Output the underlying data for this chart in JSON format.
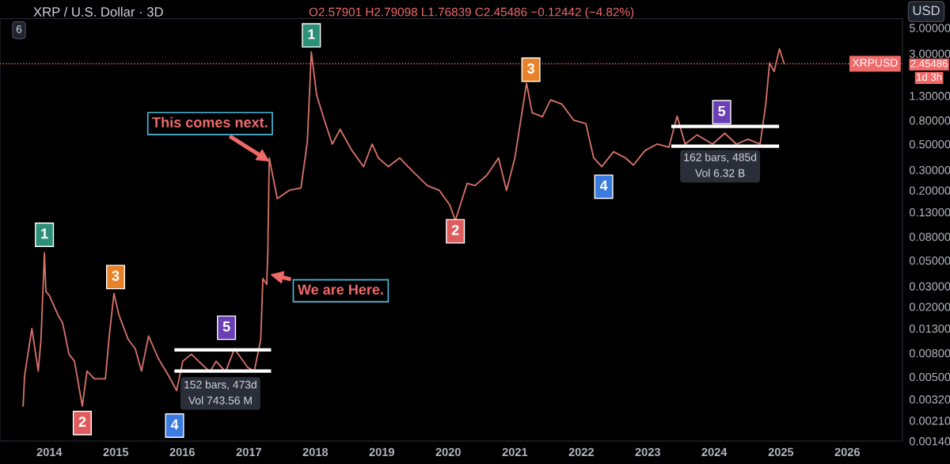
{
  "chart_data": {
    "type": "line",
    "title": "XRP / U.S. Dollar · 3D",
    "subtitle": "O2.57901 H2.79098 L1.76839 C2.45486 −0.12442 (−4.82%)",
    "series": [
      {
        "color": "#d9736b",
        "x": [
          "2013-08-10",
          "2013-08-18",
          "2013-09-27",
          "2013-11-01",
          "2013-11-16",
          "2013-12-05",
          "2013-12-13",
          "2014-01-01",
          "2014-02-17",
          "2014-03-15",
          "2014-04-19",
          "2014-05-19",
          "2014-07-01",
          "2014-07-27",
          "2014-09-05",
          "2014-11-05",
          "2014-11-26",
          "2014-12-22",
          "2015-01-18",
          "2015-03-11",
          "2015-04-18",
          "2015-05-22",
          "2015-06-30",
          "2015-08-22",
          "2015-10-18",
          "2015-12-01",
          "2016-01-04",
          "2016-02-20",
          "2016-06-01",
          "2016-07-05",
          "2016-08-26",
          "2016-10-14",
          "2016-12-26",
          "2017-01-31",
          "2017-03-07",
          "2017-03-19",
          "2017-04-09",
          "2017-04-15",
          "2017-04-23",
          "2017-06-06",
          "2017-08-10",
          "2017-10-14",
          "2017-11-18",
          "2017-12-10",
          "2018-01-08",
          "2018-02-20",
          "2018-04-04",
          "2018-05-17",
          "2018-07-21",
          "2018-09-23",
          "2018-11-09",
          "2018-12-13",
          "2019-02-05",
          "2019-04-09",
          "2019-06-12",
          "2019-09-08",
          "2019-11-13",
          "2020-01-09",
          "2020-02-09",
          "2020-04-14",
          "2020-05-27",
          "2020-07-31",
          "2020-10-03",
          "2020-11-16",
          "2021-01-01",
          "2021-03-06",
          "2021-04-06",
          "2021-06-01",
          "2021-07-16",
          "2021-09-17",
          "2021-11-21",
          "2022-01-26",
          "2022-03-10",
          "2022-04-23",
          "2022-06-27",
          "2022-09-01",
          "2022-10-14",
          "2022-12-17",
          "2023-02-21",
          "2023-04-27",
          "2023-06-11",
          "2023-07-25",
          "2023-09-28",
          "2023-12-23",
          "2024-02-28",
          "2024-05-01",
          "2024-07-05",
          "2024-09-09",
          "2024-10-10",
          "2024-10-31",
          "2024-11-25",
          "2024-12-24",
          "2025-01-19"
        ],
        "values": [
          0.0028,
          0.0051,
          0.013,
          0.0056,
          0.0104,
          0.058,
          0.027,
          0.025,
          0.017,
          0.0145,
          0.0078,
          0.0068,
          0.0028,
          0.0056,
          0.0048,
          0.0048,
          0.0112,
          0.026,
          0.017,
          0.0104,
          0.0087,
          0.0056,
          0.0112,
          0.0072,
          0.0051,
          0.0038,
          0.0068,
          0.0078,
          0.0055,
          0.0068,
          0.0055,
          0.0087,
          0.006,
          0.0056,
          0.0104,
          0.035,
          0.031,
          0.059,
          0.38,
          0.17,
          0.2,
          0.21,
          0.52,
          3.1,
          1.32,
          0.8,
          0.5,
          0.67,
          0.44,
          0.32,
          0.5,
          0.38,
          0.32,
          0.38,
          0.3,
          0.22,
          0.2,
          0.15,
          0.11,
          0.23,
          0.22,
          0.27,
          0.38,
          0.2,
          0.38,
          1.67,
          0.93,
          0.86,
          1.2,
          1.1,
          0.8,
          0.75,
          0.38,
          0.32,
          0.43,
          0.38,
          0.33,
          0.44,
          0.5,
          0.47,
          0.87,
          0.5,
          0.6,
          0.5,
          0.62,
          0.5,
          0.55,
          0.5,
          1.1,
          2.5,
          2.1,
          3.3,
          2.45486
        ]
      },
      {
        "color": "#ffffff",
        "x": [
          "2015-11-28",
          "2017-04-24"
        ],
        "values": [
          0.0085,
          0.0085
        ]
      },
      {
        "color": "#ffffff",
        "x": [
          "2015-11-28",
          "2017-04-24"
        ],
        "values": [
          0.0056,
          0.0056
        ]
      },
      {
        "color": "#ffffff",
        "x": [
          "2023-05-19",
          "2024-12-13"
        ],
        "values": [
          0.71,
          0.71
        ]
      },
      {
        "color": "#ffffff",
        "x": [
          "2023-05-19",
          "2024-12-13"
        ],
        "values": [
          0.48,
          0.48
        ]
      }
    ],
    "log": "y",
    "grid": false,
    "legend": false,
    "xlim": [
      "2013-04-05",
      "2026-10-31"
    ],
    "xticks": [
      "2014",
      "2015",
      "2016",
      "2017",
      "2018",
      "2019",
      "2020",
      "2021",
      "2022",
      "2023",
      "2024",
      "2025",
      "2026"
    ],
    "ylim": [
      0.0014,
      6.0
    ],
    "yticks": [
      {
        "value": 5,
        "label": "5.00000"
      },
      {
        "value": 3,
        "label": "3.00000"
      },
      {
        "value": 1.3,
        "label": "1.30000"
      },
      {
        "value": 0.8,
        "label": "0.80000"
      },
      {
        "value": 0.5,
        "label": "0.50000"
      },
      {
        "value": 0.3,
        "label": "0.30000"
      },
      {
        "value": 0.2,
        "label": "0.20000"
      },
      {
        "value": 0.13,
        "label": "0.13000"
      },
      {
        "value": 0.08,
        "label": "0.08000"
      },
      {
        "value": 0.05,
        "label": "0.05000"
      },
      {
        "value": 0.03,
        "label": "0.03000"
      },
      {
        "value": 0.02,
        "label": "0.02000"
      },
      {
        "value": 0.013,
        "label": "0.01300"
      },
      {
        "value": 0.008,
        "label": "0.00800"
      },
      {
        "value": 0.005,
        "label": "0.00500"
      },
      {
        "value": 0.0032,
        "label": "0.00320"
      },
      {
        "value": 0.0021,
        "label": "0.00210"
      },
      {
        "value": 0.0014,
        "label": "0.00140"
      }
    ],
    "ref_lines": [
      {
        "axis": "y",
        "value": 2.45486,
        "label": "XRPUSD",
        "color": "#f06a6a",
        "line_style": "dotted"
      }
    ],
    "annotations": [
      {
        "text": "1",
        "x": "2013-12-05",
        "y": 0.083
      },
      {
        "text": "2",
        "x": "2014-07-01",
        "y": 0.002
      },
      {
        "text": "3",
        "x": "2014-12-31",
        "y": 0.036
      },
      {
        "text": "4",
        "x": "2015-11-20",
        "y": 0.0019
      },
      {
        "text": "5",
        "x": "2016-08-31",
        "y": 0.0132
      },
      {
        "text": "1",
        "x": "2017-12-10",
        "y": 4.3
      },
      {
        "text": "2",
        "x": "2020-02-09",
        "y": 0.089
      },
      {
        "text": "3",
        "x": "2021-03-30",
        "y": 2.18
      },
      {
        "text": "4",
        "x": "2022-05-04",
        "y": 0.215
      },
      {
        "text": "5",
        "x": "2024-02-11",
        "y": 0.94
      },
      {
        "text": "This comes next.",
        "x": "2017-04-30",
        "y": 0.35
      },
      {
        "text": "We are Here.",
        "x": "2017-04-23",
        "y": 0.038
      },
      "USD",
      "1d 3h",
      "6",
      "152 bars, 473d\nVol 743.56 M",
      "162 bars, 485d\nVol 6.32 B",
      "2.45486"
    ]
  }
}
